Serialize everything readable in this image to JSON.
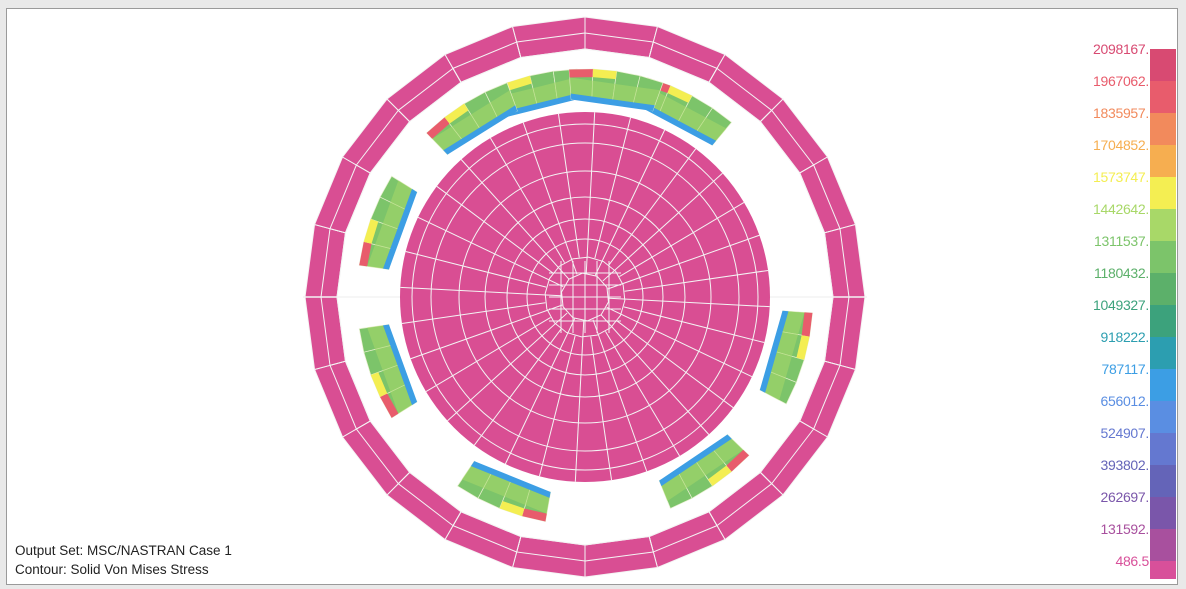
{
  "info": {
    "output_set": "Output Set: MSC/NASTRAN Case 1",
    "contour": "Contour: Solid Von Mises Stress"
  },
  "legend": {
    "levels": [
      {
        "label": "2098167.",
        "color": "#d84a72"
      },
      {
        "label": "1967062.",
        "color": "#e85c6c"
      },
      {
        "label": "1835957.",
        "color": "#f28a5c"
      },
      {
        "label": "1704852.",
        "color": "#f6ae50"
      },
      {
        "label": "1573747.",
        "color": "#f4ee52"
      },
      {
        "label": "1442642.",
        "color": "#a8d868"
      },
      {
        "label": "1311537.",
        "color": "#7cc46a"
      },
      {
        "label": "1180432.",
        "color": "#5cb06a"
      },
      {
        "label": "1049327.",
        "color": "#3ca27c"
      },
      {
        "label": "918222.",
        "color": "#2c9eb0"
      },
      {
        "label": "787117.",
        "color": "#3c9ee4"
      },
      {
        "label": "656012.",
        "color": "#5a8ee2"
      },
      {
        "label": "524907.",
        "color": "#6478d0"
      },
      {
        "label": "393802.",
        "color": "#6464b8"
      },
      {
        "label": "262697.",
        "color": "#7a56aa"
      },
      {
        "label": "131592.",
        "color": "#a8509e"
      },
      {
        "label": "486.5",
        "color": "#d8509a"
      }
    ]
  },
  "colors": {
    "model_fill": "#d94e93",
    "mesh_line": "#f4f4f4"
  }
}
